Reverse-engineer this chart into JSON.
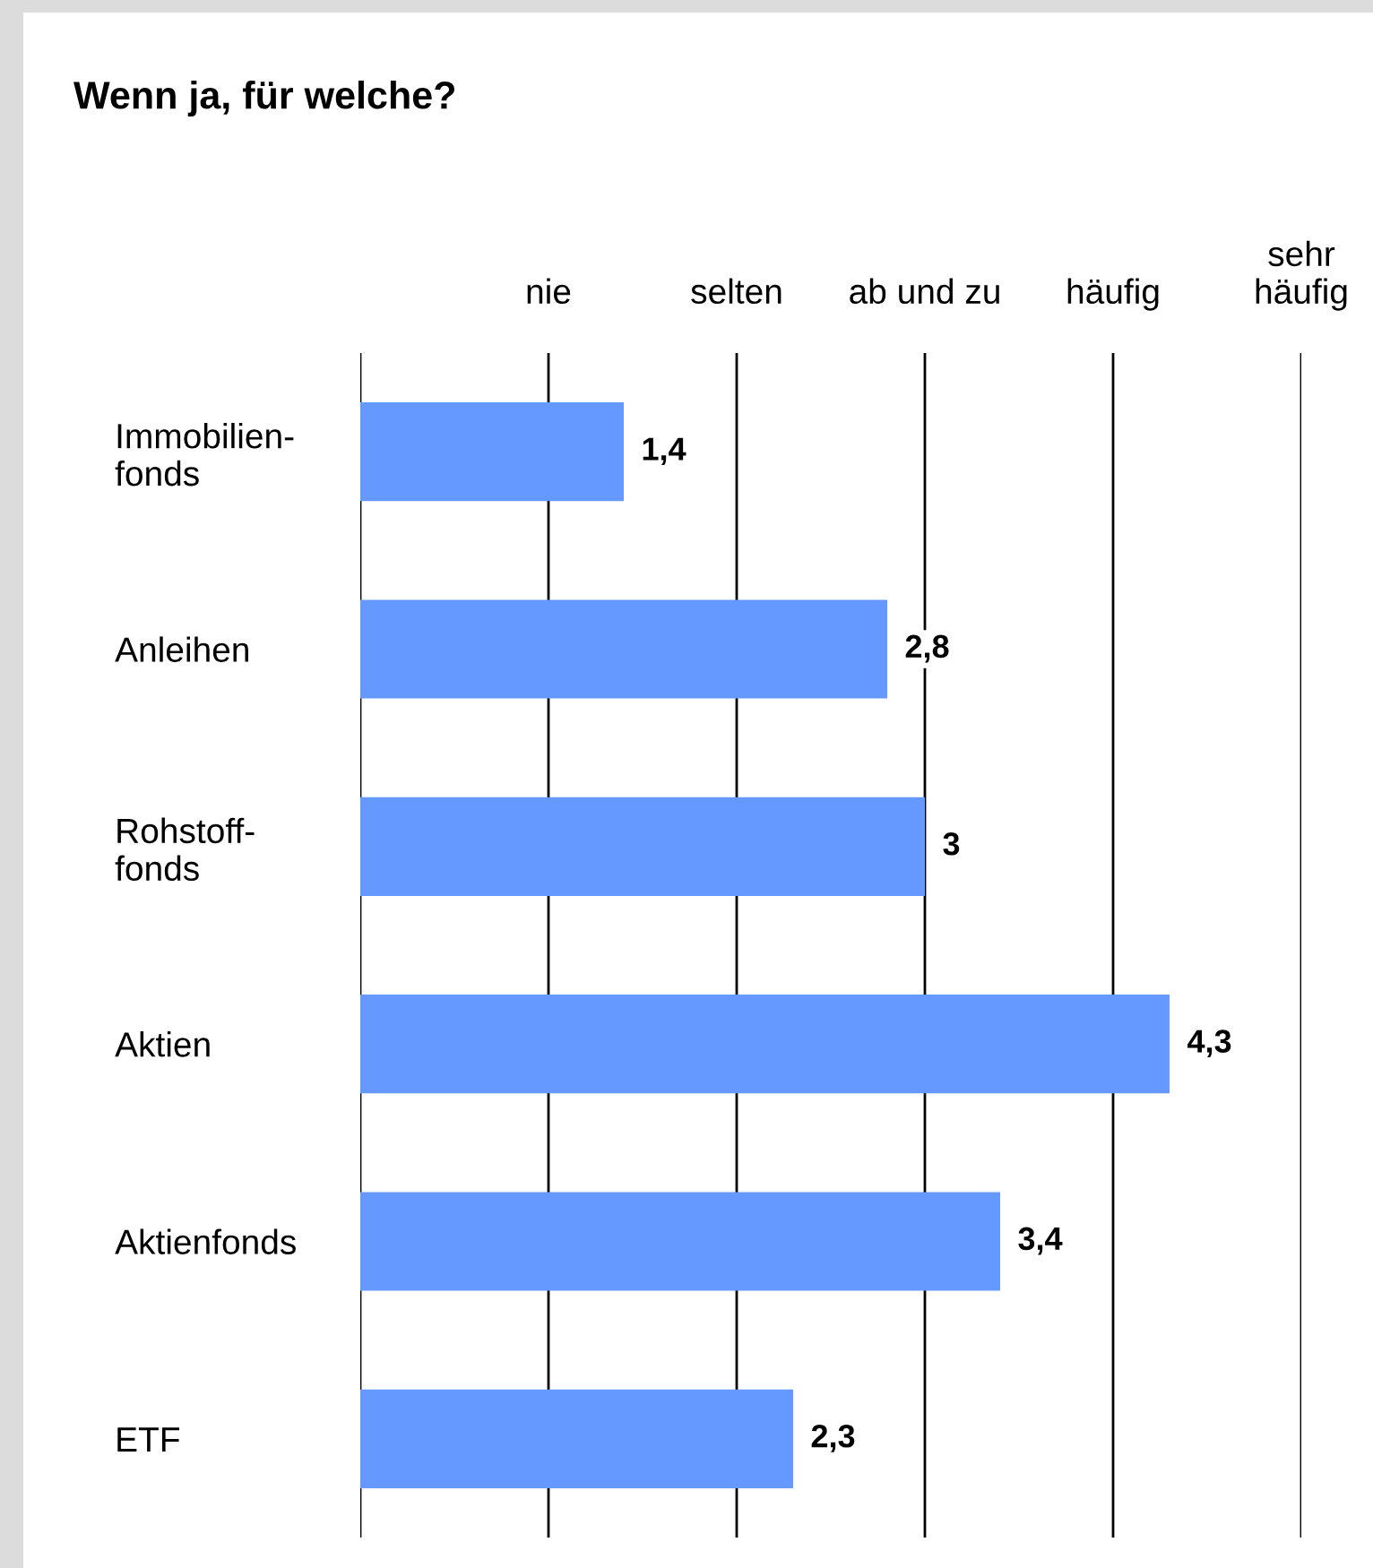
{
  "chart_data": {
    "type": "bar",
    "orientation": "horizontal",
    "title": "Wenn ja, für welche?",
    "categories": [
      "Immobilien-\nfonds",
      "Anleihen",
      "Rohstoff-\nfonds",
      "Aktien",
      "Aktienfonds",
      "ETF"
    ],
    "values": [
      1.4,
      2.8,
      3,
      4.3,
      3.4,
      2.3
    ],
    "value_labels": [
      "1,4",
      "2,8",
      "3",
      "4,3",
      "3,4",
      "2,3"
    ],
    "color": "#6699ff",
    "xlim": [
      0,
      5
    ],
    "tick_labels": "y",
    "ref_lines": [
      {
        "axis": "x",
        "value": 0
      },
      {
        "axis": "x",
        "value": 1,
        "label": "nie"
      },
      {
        "axis": "x",
        "value": 2,
        "label": "selten"
      },
      {
        "axis": "x",
        "value": 3,
        "label": "ab und zu"
      },
      {
        "axis": "x",
        "value": 4,
        "label": "häufig"
      },
      {
        "axis": "x",
        "value": 5,
        "label": "sehr\nhäufig"
      }
    ]
  }
}
